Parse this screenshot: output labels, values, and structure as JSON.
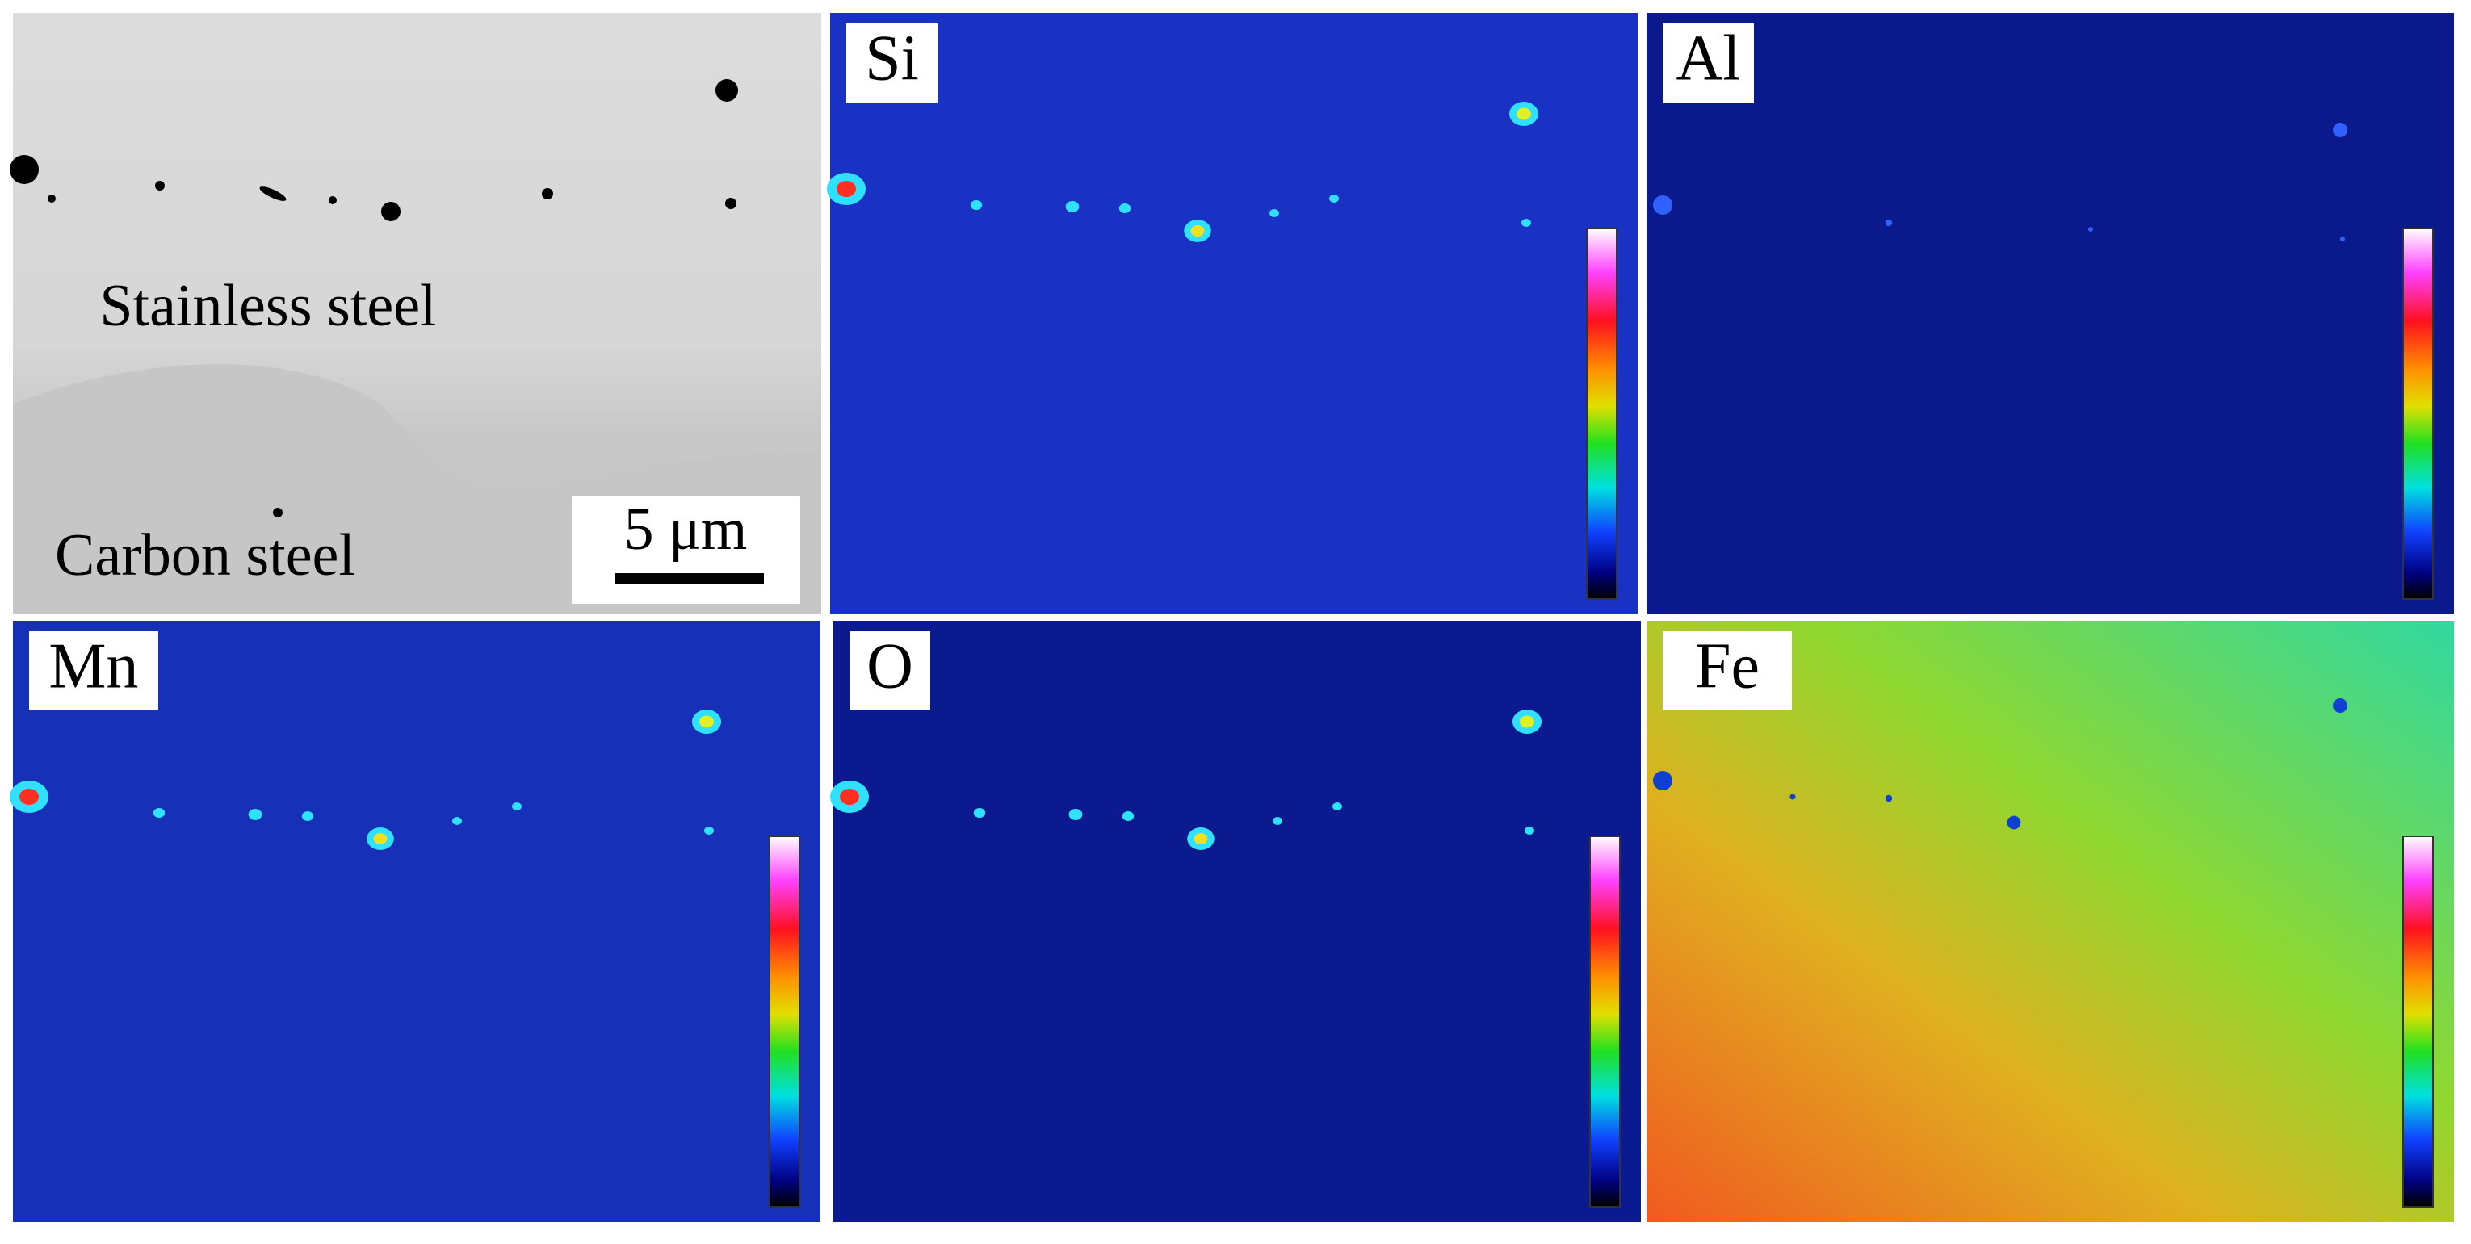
{
  "sem": {
    "labels": [
      "Stainless steel",
      "Carbon steel"
    ],
    "scale_bar": "5 μm"
  },
  "maps": [
    {
      "label": "Si"
    },
    {
      "label": "Al"
    },
    {
      "label": "Mn"
    },
    {
      "label": "O"
    },
    {
      "label": "Fe"
    }
  ]
}
